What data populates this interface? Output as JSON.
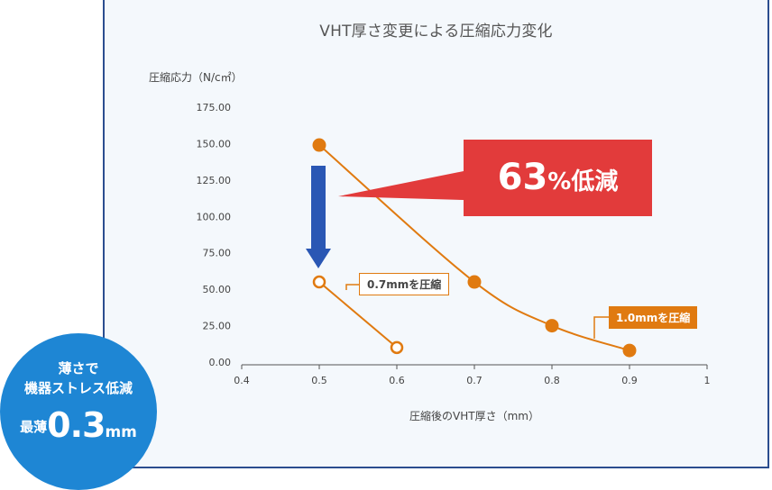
{
  "title": "VHT厚さ変更による圧縮応力変化",
  "callout": {
    "number": "63",
    "rest": "%低減"
  },
  "label_07": "0.7mmを圧縮",
  "label_10": "1.0mmを圧縮",
  "badge": {
    "line1": "薄さで",
    "line2": "機器ストレス低減",
    "prefix": "最薄",
    "value": "0.3",
    "unit": "mm"
  },
  "colors": {
    "orange": "#e07a10",
    "red": "#e23b3b",
    "arrow": "#2a57b4",
    "badge": "#1e86d4",
    "frame": "#2b4d8f"
  },
  "chart_data": {
    "type": "line",
    "xlabel": "圧縮後のVHT厚さ（mm）",
    "ylabel": "圧縮応力（N/c㎡）",
    "xlim": [
      0.4,
      1.0
    ],
    "ylim": [
      0,
      175
    ],
    "x_ticks": [
      "0.4",
      "0.5",
      "0.6",
      "0.7",
      "0.8",
      "0.9",
      "1"
    ],
    "y_ticks": [
      "0.00",
      "25.00",
      "50.00",
      "75.00",
      "100.00",
      "125.00",
      "150.00",
      "175.00"
    ],
    "series": [
      {
        "name": "1.0mmを圧縮",
        "marker": "filled",
        "x": [
          0.5,
          0.7,
          0.8,
          0.9
        ],
        "y": [
          149,
          55,
          25,
          8
        ]
      },
      {
        "name": "0.7mmを圧縮",
        "marker": "hollow",
        "x": [
          0.5,
          0.6
        ],
        "y": [
          55,
          10
        ]
      }
    ]
  }
}
